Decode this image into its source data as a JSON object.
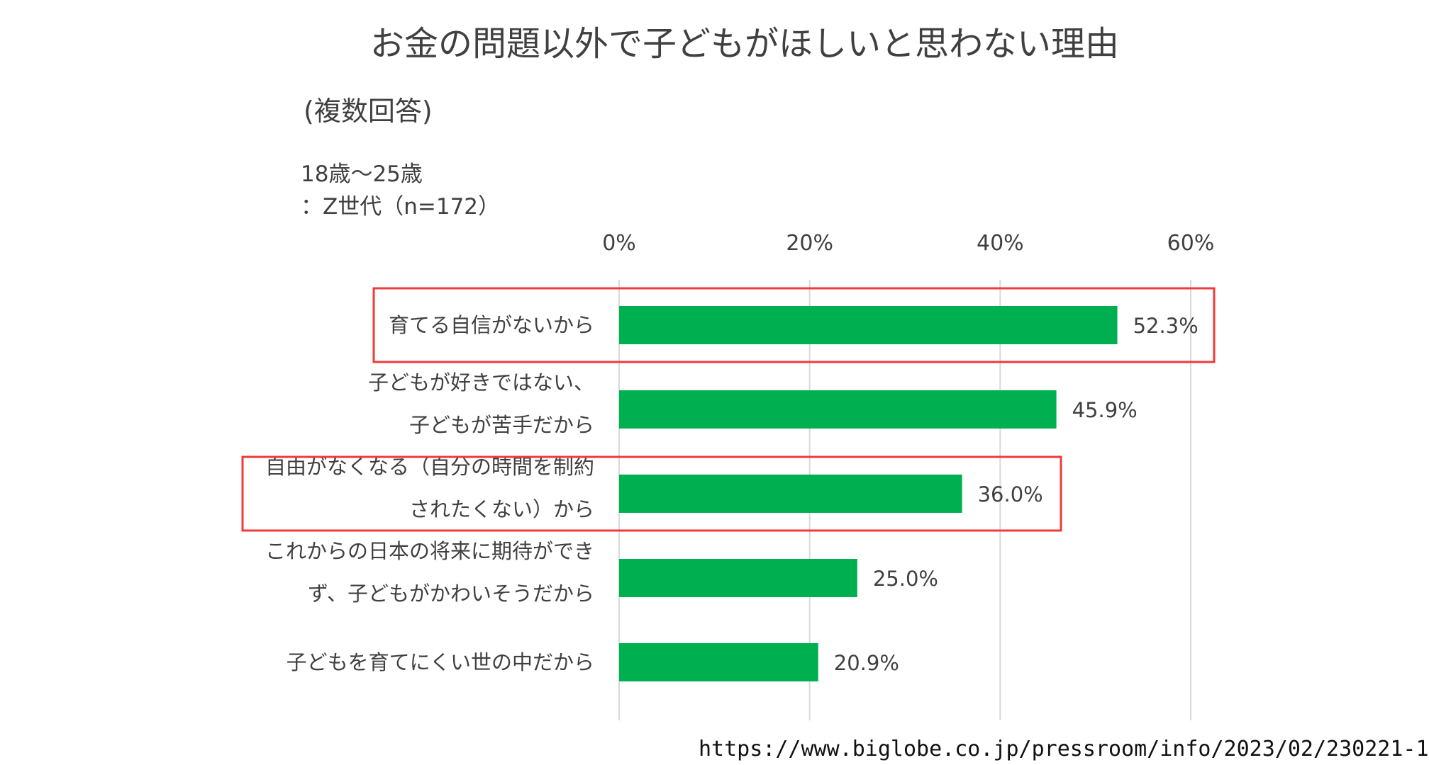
{
  "header": {
    "title": "お金の問題以外で子どもがほしいと思わない理由",
    "subtitle": "(複数回答)",
    "note_line1": "18歳～25歳",
    "note_line2": "：Z世代（n=172）"
  },
  "colors": {
    "bar": "#00b050",
    "highlight": "#ee3b3b",
    "grid": "#d9d9d9",
    "text": "#404040"
  },
  "chart_data": {
    "type": "bar",
    "orientation": "horizontal",
    "categories": [
      [
        "育てる自信がないから"
      ],
      [
        "子どもが好きではない、",
        "子どもが苦手だから"
      ],
      [
        "自由がなくなる（自分の時間を制約",
        "されたくない）から"
      ],
      [
        "これからの日本の将来に期待ができ",
        "ず、子どもがかわいそうだから"
      ],
      [
        "子どもを育てにくい世の中だから"
      ]
    ],
    "values": [
      52.3,
      45.9,
      36.0,
      25.0,
      20.9
    ],
    "value_labels": [
      "52.3%",
      "45.9%",
      "36.0%",
      "25.0%",
      "20.9%"
    ],
    "xlim": [
      0,
      60
    ],
    "ticks": [
      0,
      20,
      40,
      60
    ],
    "tick_labels": [
      "0%",
      "20%",
      "40%",
      "60%"
    ],
    "highlighted_categories": [
      0,
      2
    ],
    "grid": true
  },
  "footer": {
    "source": "https://www.biglobe.co.jp/pressroom/info/2023/02/230221-1"
  }
}
